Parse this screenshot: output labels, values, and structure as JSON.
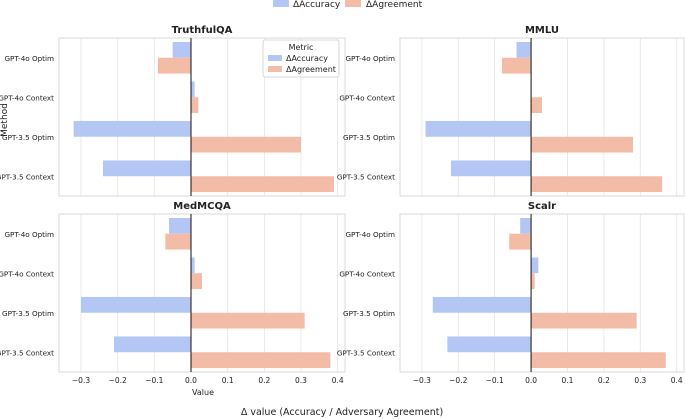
{
  "figure": {
    "supxlabel": "Δ value (Accuracy / Adversary Agreement)",
    "ylabel": "Method",
    "xlabel": "Value",
    "legend_top": [
      {
        "label": "ΔAccuracy",
        "color": "#b4c7f4"
      },
      {
        "label": "ΔAgreement",
        "color": "#f2bca7"
      }
    ],
    "inner_legend": {
      "title": "Metric",
      "items": [
        {
          "label": "ΔAccuracy",
          "color": "#b4c7f4"
        },
        {
          "label": "ΔAgreement",
          "color": "#f2bca7"
        }
      ]
    }
  },
  "chart_data": [
    {
      "type": "bar",
      "orientation": "horizontal",
      "title": "TruthfulQA",
      "categories": [
        "GPT-4o Optim",
        "GPT-4o Context",
        "GPT-3.5 Optim",
        "GPT-3.5 Context"
      ],
      "series": [
        {
          "name": "ΔAccuracy",
          "values": [
            -0.05,
            0.01,
            -0.32,
            -0.24
          ]
        },
        {
          "name": "ΔAgreement",
          "values": [
            -0.09,
            0.02,
            0.3,
            0.39
          ]
        }
      ],
      "xlim": [
        -0.36,
        0.42
      ],
      "xticks": [],
      "xlabel": "",
      "ylabel": "Method",
      "grid": true
    },
    {
      "type": "bar",
      "orientation": "horizontal",
      "title": "MMLU",
      "categories": [
        "GPT-4o Optim",
        "GPT-4o Context",
        "GPT-3.5 Optim",
        "GPT-3.5 Context"
      ],
      "series": [
        {
          "name": "ΔAccuracy",
          "values": [
            -0.04,
            0.0,
            -0.29,
            -0.22
          ]
        },
        {
          "name": "ΔAgreement",
          "values": [
            -0.08,
            0.03,
            0.28,
            0.36
          ]
        }
      ],
      "xlim": [
        -0.36,
        0.42
      ],
      "xticks": [],
      "xlabel": "",
      "ylabel": "",
      "grid": true
    },
    {
      "type": "bar",
      "orientation": "horizontal",
      "title": "MedMCQA",
      "categories": [
        "GPT-4o Optim",
        "GPT-4o Context",
        "GPT-3.5 Optim",
        "GPT-3.5 Context"
      ],
      "series": [
        {
          "name": "ΔAccuracy",
          "values": [
            -0.06,
            0.01,
            -0.3,
            -0.21
          ]
        },
        {
          "name": "ΔAgreement",
          "values": [
            -0.07,
            0.03,
            0.31,
            0.38
          ]
        }
      ],
      "xlim": [
        -0.36,
        0.42
      ],
      "xticks": [
        "−0.3",
        "−0.2",
        "−0.1",
        "0.0",
        "0.1",
        "0.2",
        "0.3",
        "0.4"
      ],
      "xlabel": "Value",
      "ylabel": "",
      "grid": true
    },
    {
      "type": "bar",
      "orientation": "horizontal",
      "title": "Scalr",
      "categories": [
        "GPT-4o Optim",
        "GPT-4o Context",
        "GPT-3.5 Optim",
        "GPT-3.5 Context"
      ],
      "series": [
        {
          "name": "ΔAccuracy",
          "values": [
            -0.03,
            0.02,
            -0.27,
            -0.23
          ]
        },
        {
          "name": "ΔAgreement",
          "values": [
            -0.06,
            0.01,
            0.29,
            0.37
          ]
        }
      ],
      "xlim": [
        -0.36,
        0.42
      ],
      "xticks": [
        "−0.3",
        "−0.2",
        "−0.1",
        "0.0",
        "0.1",
        "0.2",
        "0.3",
        "0.4"
      ],
      "xlabel": "",
      "ylabel": "",
      "grid": true
    }
  ]
}
